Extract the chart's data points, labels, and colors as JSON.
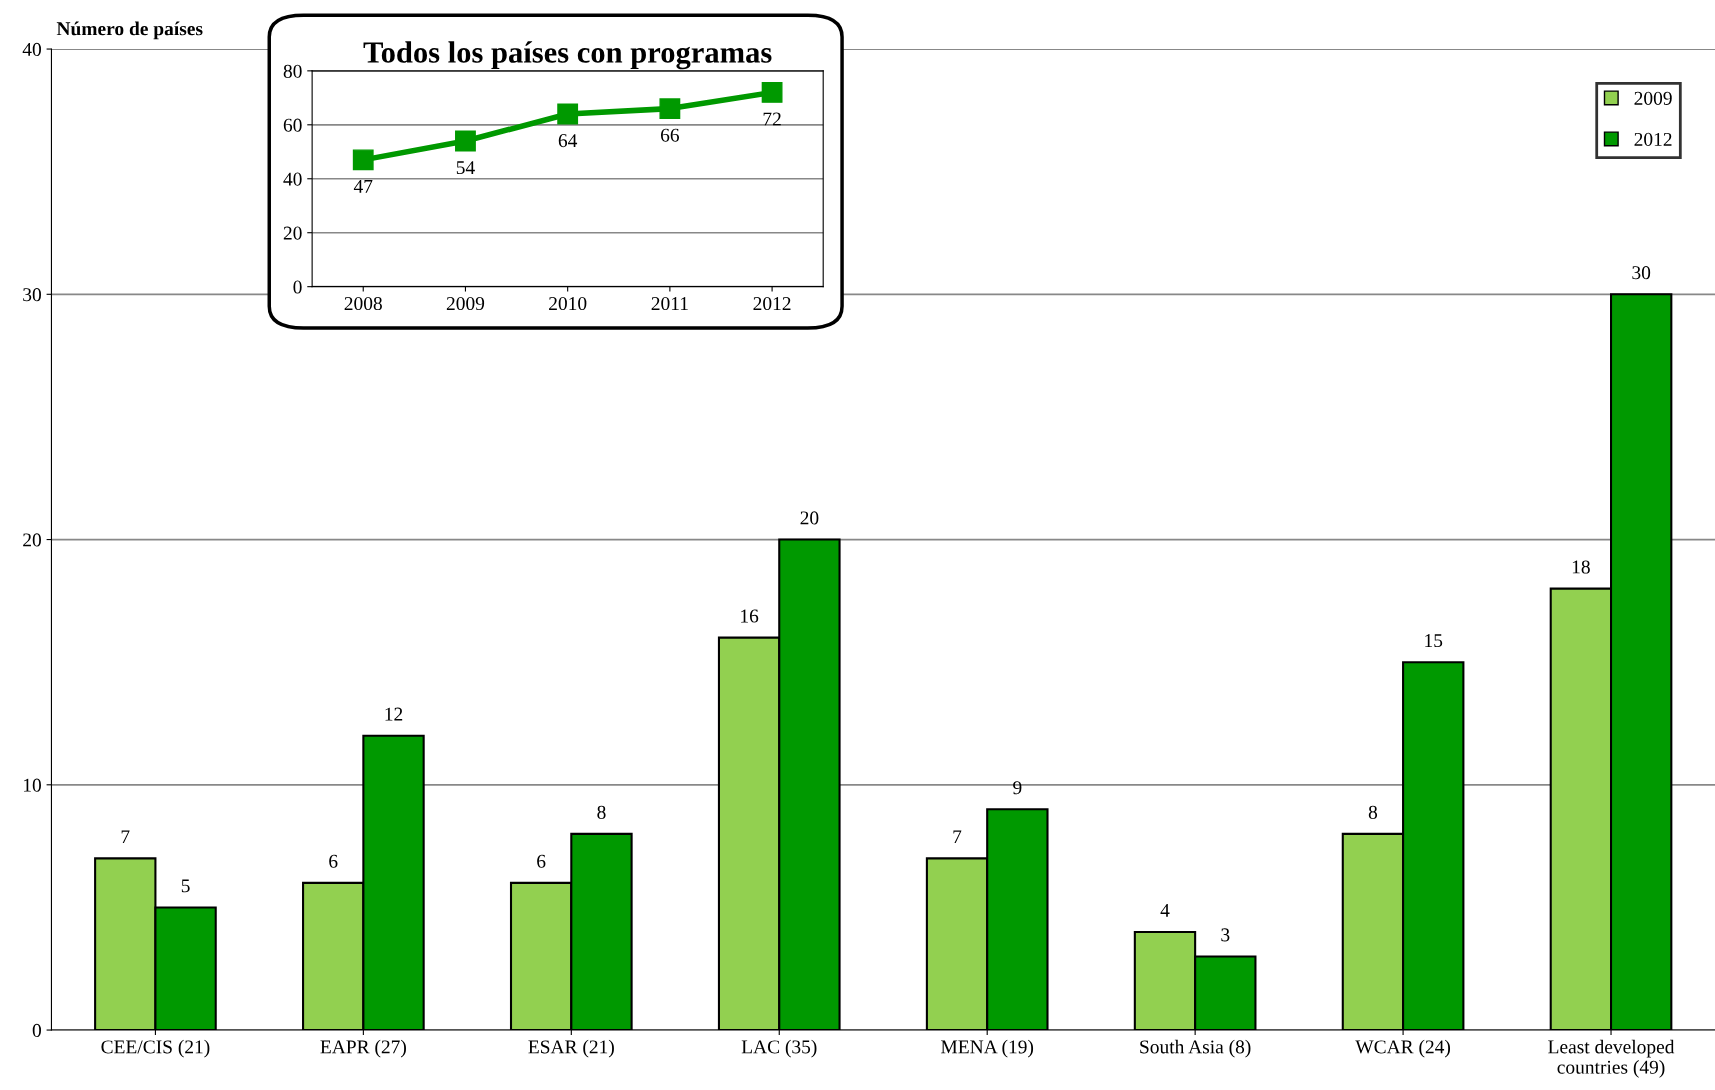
{
  "chart_data": [
    {
      "type": "bar",
      "ylabel": "Número de países",
      "categories": [
        "CEE/CIS (21)",
        "EAPR (27)",
        "ESAR (21)",
        "LAC (35)",
        "MENA (19)",
        "South Asia (8)",
        "WCAR (24)",
        "Least developed\ncountries (49)"
      ],
      "series": [
        {
          "name": "2009",
          "color": "#92d050",
          "values": [
            7,
            6,
            6,
            16,
            7,
            4,
            8,
            18
          ]
        },
        {
          "name": "2012",
          "color": "#009900",
          "values": [
            5,
            12,
            8,
            20,
            9,
            3,
            15,
            30
          ]
        }
      ],
      "ylim": [
        0,
        40
      ],
      "yticks": [
        0,
        10,
        20,
        30,
        40
      ],
      "grid": "y",
      "legend": "top right",
      "data_labels": true
    },
    {
      "type": "line",
      "title": "Todos los países con programas",
      "categories": [
        "2008",
        "2009",
        "2010",
        "2011",
        "2012"
      ],
      "series": [
        {
          "color": "#009900",
          "values": [
            47,
            54,
            64,
            66,
            72
          ]
        }
      ],
      "ylim": [
        0,
        80
      ],
      "yticks": [
        0,
        20,
        40,
        60,
        80
      ],
      "grid": "y",
      "marker": "square",
      "data_labels": true
    }
  ]
}
